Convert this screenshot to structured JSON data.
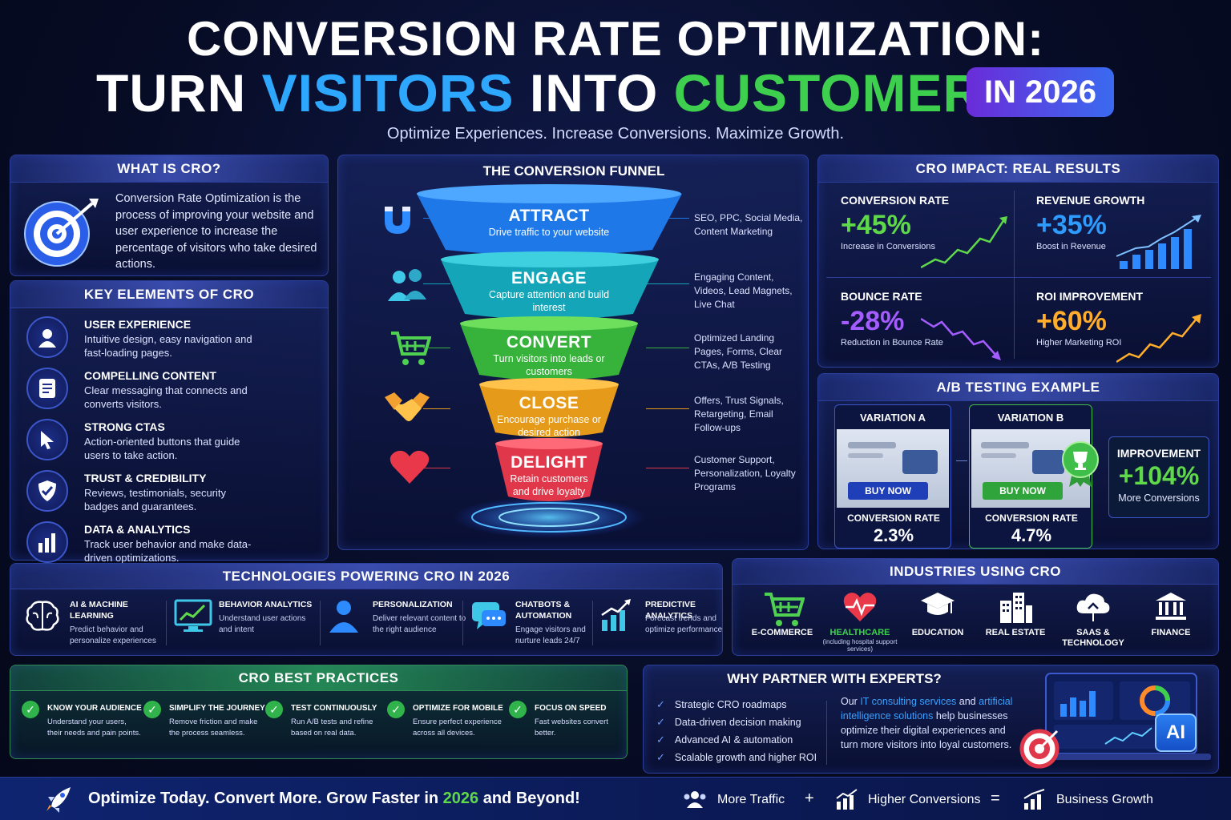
{
  "header": {
    "title_line1": "CONVERSION RATE OPTIMIZATION:",
    "title_word1": "TURN ",
    "title_word2": "VISITORS",
    "title_word3": " INTO ",
    "title_word4": "CUSTOMERS",
    "badge": "IN 2026",
    "subtitle": "Optimize Experiences. Increase Conversions. Maximize Growth."
  },
  "what_is_cro": {
    "title": "WHAT IS CRO?",
    "text": "Conversion Rate Optimization is the process of improving your website and user experience to increase the percentage of visitors who take desired actions."
  },
  "key_elements": {
    "title": "KEY ELEMENTS OF CRO",
    "items": [
      {
        "title": "USER EXPERIENCE",
        "desc": "Intuitive design, easy navigation and fast-loading pages.",
        "icon": "user-icon"
      },
      {
        "title": "COMPELLING CONTENT",
        "desc": "Clear messaging that connects and converts visitors.",
        "icon": "document-icon"
      },
      {
        "title": "STRONG CTAS",
        "desc": "Action-oriented buttons that guide users to take action.",
        "icon": "cursor-icon"
      },
      {
        "title": "TRUST & CREDIBILITY",
        "desc": "Reviews, testimonials, security badges and guarantees.",
        "icon": "shield-icon"
      },
      {
        "title": "DATA & ANALYTICS",
        "desc": "Track user behavior and make data-driven optimizations.",
        "icon": "bar-chart-icon"
      }
    ]
  },
  "funnel": {
    "title": "THE CONVERSION FUNNEL",
    "stages": [
      {
        "name": "ATTRACT",
        "desc": "Drive traffic to your website",
        "side": "SEO, PPC, Social Media, Content Marketing",
        "color": "#1f78e8",
        "icon": "magnet-icon"
      },
      {
        "name": "ENGAGE",
        "desc": "Capture attention and build interest",
        "side": "Engaging Content, Videos, Lead Magnets, Live Chat",
        "color": "#14a6b8",
        "icon": "users-icon"
      },
      {
        "name": "CONVERT",
        "desc": "Turn visitors into leads or customers",
        "side": "Optimized Landing Pages, Forms, Clear CTAs, A/B Testing",
        "color": "#37b23a",
        "icon": "cart-icon"
      },
      {
        "name": "CLOSE",
        "desc": "Encourage purchase or desired action",
        "side": "Offers, Trust Signals, Retargeting, Email Follow-ups",
        "color": "#e59a1a",
        "icon": "handshake-icon"
      },
      {
        "name": "DELIGHT",
        "desc": "Retain customers and drive loyalty",
        "side": "Customer Support, Personalization, Loyalty Programs",
        "color": "#e0384a",
        "icon": "heart-icon"
      }
    ]
  },
  "impact": {
    "title": "CRO IMPACT: REAL RESULTS",
    "metrics": [
      {
        "label": "CONVERSION RATE",
        "value": "+45%",
        "desc": "Increase in Conversions",
        "color": "#5fd94a"
      },
      {
        "label": "REVENUE GROWTH",
        "value": "+35%",
        "desc": "Boost in Revenue",
        "color": "#2e9bff"
      },
      {
        "label": "BOUNCE RATE",
        "value": "-28%",
        "desc": "Reduction in Bounce Rate",
        "color": "#a45cff"
      },
      {
        "label": "ROI IMPROVEMENT",
        "value": "+60%",
        "desc": "Higher Marketing ROI",
        "color": "#ffad2a"
      }
    ]
  },
  "ab_test": {
    "title": "A/B TESTING EXAMPLE",
    "a": {
      "label": "VARIATION A",
      "button": "BUY NOW",
      "rate_label": "CONVERSION RATE",
      "rate": "2.3%"
    },
    "b": {
      "label": "VARIATION B",
      "button": "BUY NOW",
      "rate_label": "CONVERSION RATE",
      "rate": "4.7%"
    },
    "improvement": {
      "label": "IMPROVEMENT",
      "value": "+104%",
      "desc": "More Conversions"
    }
  },
  "technologies": {
    "title": "TECHNOLOGIES POWERING CRO IN 2026",
    "items": [
      {
        "title": "AI & MACHINE LEARNING",
        "desc": "Predict behavior and personalize experiences",
        "icon": "brain-icon"
      },
      {
        "title": "BEHAVIOR ANALYTICS",
        "desc": "Understand user actions and intent",
        "icon": "monitor-chart-icon"
      },
      {
        "title": "PERSONALIZATION",
        "desc": "Deliver relevant content to the right audience",
        "icon": "person-icon"
      },
      {
        "title": "CHATBOTS & AUTOMATION",
        "desc": "Engage visitors and nurture leads 24/7",
        "icon": "chat-icon"
      },
      {
        "title": "PREDICTIVE ANALYTICS",
        "desc": "Forecast trends and optimize performance",
        "icon": "growth-chart-icon"
      }
    ]
  },
  "industries": {
    "title": "INDUSTRIES USING CRO",
    "items": [
      {
        "name": "E-COMMERCE",
        "note": "",
        "icon": "cart-icon"
      },
      {
        "name": "HEALTHCARE",
        "note": "(including hospital support services)",
        "icon": "heart-pulse-icon"
      },
      {
        "name": "EDUCATION",
        "note": "",
        "icon": "graduation-cap-icon"
      },
      {
        "name": "REAL ESTATE",
        "note": "",
        "icon": "building-icon"
      },
      {
        "name": "SAAS & TECHNOLOGY",
        "note": "",
        "icon": "cloud-icon"
      },
      {
        "name": "FINANCE",
        "note": "",
        "icon": "bank-icon"
      }
    ]
  },
  "best_practices": {
    "title": "CRO BEST PRACTICES",
    "items": [
      {
        "title": "KNOW YOUR AUDIENCE",
        "desc": "Understand your users, their needs and pain points."
      },
      {
        "title": "SIMPLIFY THE JOURNEY",
        "desc": "Remove friction and make the process seamless."
      },
      {
        "title": "TEST CONTINUOUSLY",
        "desc": "Run A/B tests and refine based on real data."
      },
      {
        "title": "OPTIMIZE FOR MOBILE",
        "desc": "Ensure perfect experience across all devices."
      },
      {
        "title": "FOCUS ON SPEED",
        "desc": "Fast websites convert better."
      }
    ]
  },
  "partner": {
    "title": "WHY PARTNER WITH EXPERTS?",
    "bullets": [
      "Strategic CRO roadmaps",
      "Data-driven decision making",
      "Advanced AI & automation",
      "Scalable growth and higher ROI"
    ],
    "text_pre": "Our ",
    "link1": "IT consulting services",
    "text_mid": " and ",
    "link2": "artificial intelligence solutions",
    "text_post": " help businesses optimize their digital experiences and turn more visitors into loyal customers.",
    "ai_badge": "AI"
  },
  "footer": {
    "tagline_pre": "Optimize Today. Convert More. Grow Faster in ",
    "tagline_year": "2026",
    "tagline_post": " and Beyond!",
    "eq1": "More Traffic",
    "plus": "+",
    "eq2": "Higher Conversions",
    "equals": "=",
    "eq3": "Business Growth"
  },
  "colors": {
    "accent_blue": "#2ea8ff",
    "accent_green": "#3fcf4e",
    "accent_purple": "#6a2cd8"
  }
}
